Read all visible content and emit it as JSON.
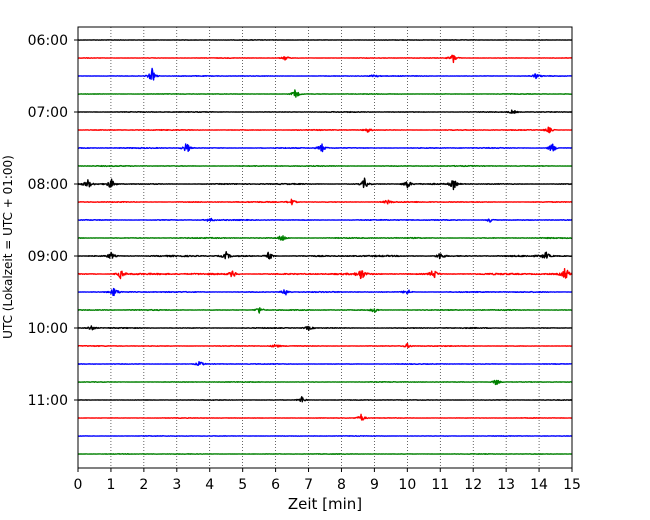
{
  "chart_data": {
    "type": "line",
    "title": "",
    "xlabel": "Zeit  [min]",
    "ylabel": "UTC (Lokalzeit = UTC + 01:00)",
    "xlim": [
      0,
      15
    ],
    "x_ticks": [
      "0",
      "1",
      "2",
      "3",
      "4",
      "5",
      "6",
      "7",
      "8",
      "9",
      "10",
      "11",
      "12",
      "13",
      "14",
      "15"
    ],
    "y_tick_labels": [
      "06:00",
      "07:00",
      "08:00",
      "09:00",
      "10:00",
      "11:00"
    ],
    "grid": "vertical-dotted",
    "trace_colors": [
      "#000000",
      "#ff0000",
      "#0000ff",
      "#008000"
    ],
    "traces": [
      {
        "start": "06:00",
        "amplitude": 0.25,
        "events": []
      },
      {
        "start": "06:15",
        "amplitude": 0.3,
        "events": [
          [
            6.3,
            0.5
          ],
          [
            11.4,
            1.1
          ]
        ]
      },
      {
        "start": "06:30",
        "amplitude": 0.35,
        "events": [
          [
            2.25,
            1.5
          ],
          [
            9.0,
            0.5
          ],
          [
            13.9,
            0.6
          ]
        ]
      },
      {
        "start": "06:45",
        "amplitude": 0.3,
        "events": [
          [
            6.6,
            1.0
          ]
        ]
      },
      {
        "start": "07:00",
        "amplitude": 0.4,
        "events": [
          [
            13.2,
            0.5
          ]
        ]
      },
      {
        "start": "07:15",
        "amplitude": 0.4,
        "events": [
          [
            8.8,
            0.5
          ],
          [
            14.3,
            0.7
          ]
        ]
      },
      {
        "start": "07:30",
        "amplitude": 0.45,
        "events": [
          [
            3.3,
            1.3
          ],
          [
            7.4,
            1.0
          ],
          [
            14.4,
            1.1
          ]
        ]
      },
      {
        "start": "07:45",
        "amplitude": 0.45,
        "events": []
      },
      {
        "start": "08:00",
        "amplitude": 0.55,
        "events": [
          [
            0.3,
            0.9
          ],
          [
            1.0,
            1.2
          ],
          [
            8.7,
            1.1
          ],
          [
            10.0,
            1.0
          ],
          [
            11.4,
            1.1
          ]
        ]
      },
      {
        "start": "08:15",
        "amplitude": 0.5,
        "events": [
          [
            6.5,
            0.7
          ],
          [
            9.4,
            0.5
          ]
        ]
      },
      {
        "start": "08:30",
        "amplitude": 0.45,
        "events": [
          [
            4.0,
            0.5
          ],
          [
            12.5,
            0.5
          ]
        ]
      },
      {
        "start": "08:45",
        "amplitude": 0.5,
        "events": [
          [
            6.2,
            0.9
          ]
        ]
      },
      {
        "start": "09:00",
        "amplitude": 0.7,
        "events": [
          [
            1.0,
            0.8
          ],
          [
            4.5,
            0.8
          ],
          [
            5.8,
            1.0
          ],
          [
            11.0,
            0.9
          ],
          [
            14.2,
            0.9
          ]
        ]
      },
      {
        "start": "09:15",
        "amplitude": 0.8,
        "events": [
          [
            1.3,
            1.0
          ],
          [
            4.7,
            0.9
          ],
          [
            8.6,
            1.3
          ],
          [
            10.8,
            1.2
          ],
          [
            14.8,
            1.5
          ]
        ]
      },
      {
        "start": "09:30",
        "amplitude": 0.5,
        "events": [
          [
            1.1,
            1.0
          ],
          [
            6.3,
            0.8
          ],
          [
            10.0,
            0.7
          ]
        ]
      },
      {
        "start": "09:45",
        "amplitude": 0.45,
        "events": [
          [
            5.5,
            0.8
          ],
          [
            9.0,
            0.6
          ]
        ]
      },
      {
        "start": "10:00",
        "amplitude": 0.45,
        "events": [
          [
            0.4,
            0.6
          ],
          [
            7.0,
            0.5
          ]
        ]
      },
      {
        "start": "10:15",
        "amplitude": 0.4,
        "events": [
          [
            6.0,
            0.5
          ],
          [
            10.0,
            0.5
          ]
        ]
      },
      {
        "start": "10:30",
        "amplitude": 0.35,
        "events": [
          [
            3.7,
            0.6
          ]
        ]
      },
      {
        "start": "10:45",
        "amplitude": 0.35,
        "events": [
          [
            12.7,
            0.7
          ]
        ]
      },
      {
        "start": "11:00",
        "amplitude": 0.3,
        "events": [
          [
            6.8,
            0.8
          ]
        ]
      },
      {
        "start": "11:15",
        "amplitude": 0.3,
        "events": [
          [
            8.6,
            0.9
          ]
        ]
      },
      {
        "start": "11:30",
        "amplitude": 0.3,
        "events": []
      },
      {
        "start": "11:45",
        "amplitude": 0.3,
        "events": []
      }
    ]
  }
}
